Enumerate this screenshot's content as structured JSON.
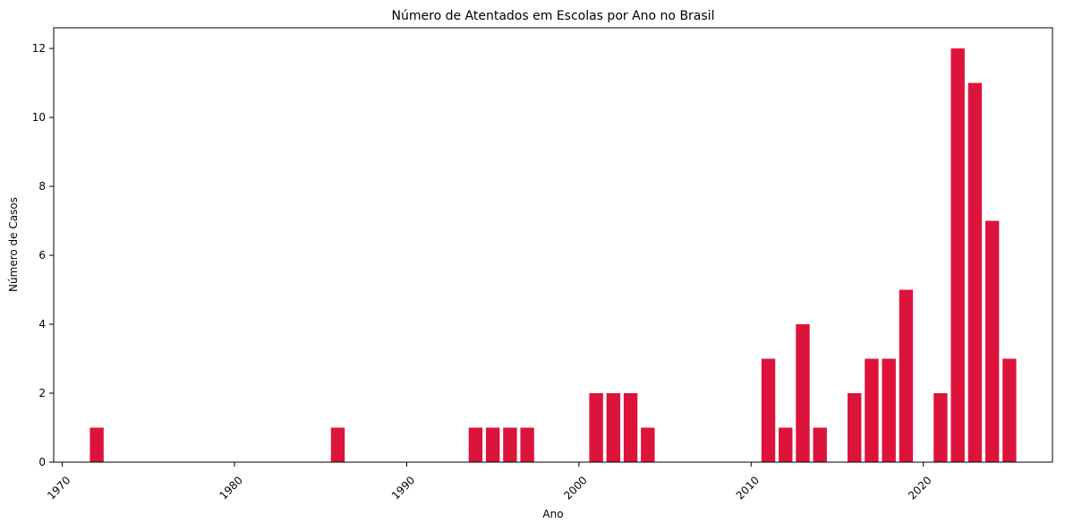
{
  "chart_data": {
    "type": "bar",
    "title": "Número de Atentados em Escolas por Ano no Brasil",
    "xlabel": "Ano",
    "ylabel": "Número de Casos",
    "x": [
      1972,
      1986,
      1994,
      1995,
      1996,
      1997,
      2001,
      2002,
      2003,
      2004,
      2011,
      2012,
      2013,
      2014,
      2016,
      2017,
      2018,
      2019,
      2021,
      2022,
      2023,
      2024,
      2025
    ],
    "values": [
      1,
      1,
      1,
      1,
      1,
      1,
      2,
      2,
      2,
      1,
      3,
      1,
      4,
      1,
      2,
      3,
      3,
      5,
      2,
      12,
      11,
      7,
      3
    ],
    "xlim": [
      1969.5,
      2027.5
    ],
    "ylim": [
      0,
      12.6
    ],
    "xticks": [
      1970,
      1980,
      1990,
      2000,
      2010,
      2020
    ],
    "yticks": [
      0,
      2,
      4,
      6,
      8,
      10,
      12
    ],
    "xtick_rotation_deg": 45,
    "bar_color": "#dc143c",
    "grid": false,
    "legend": "none"
  }
}
